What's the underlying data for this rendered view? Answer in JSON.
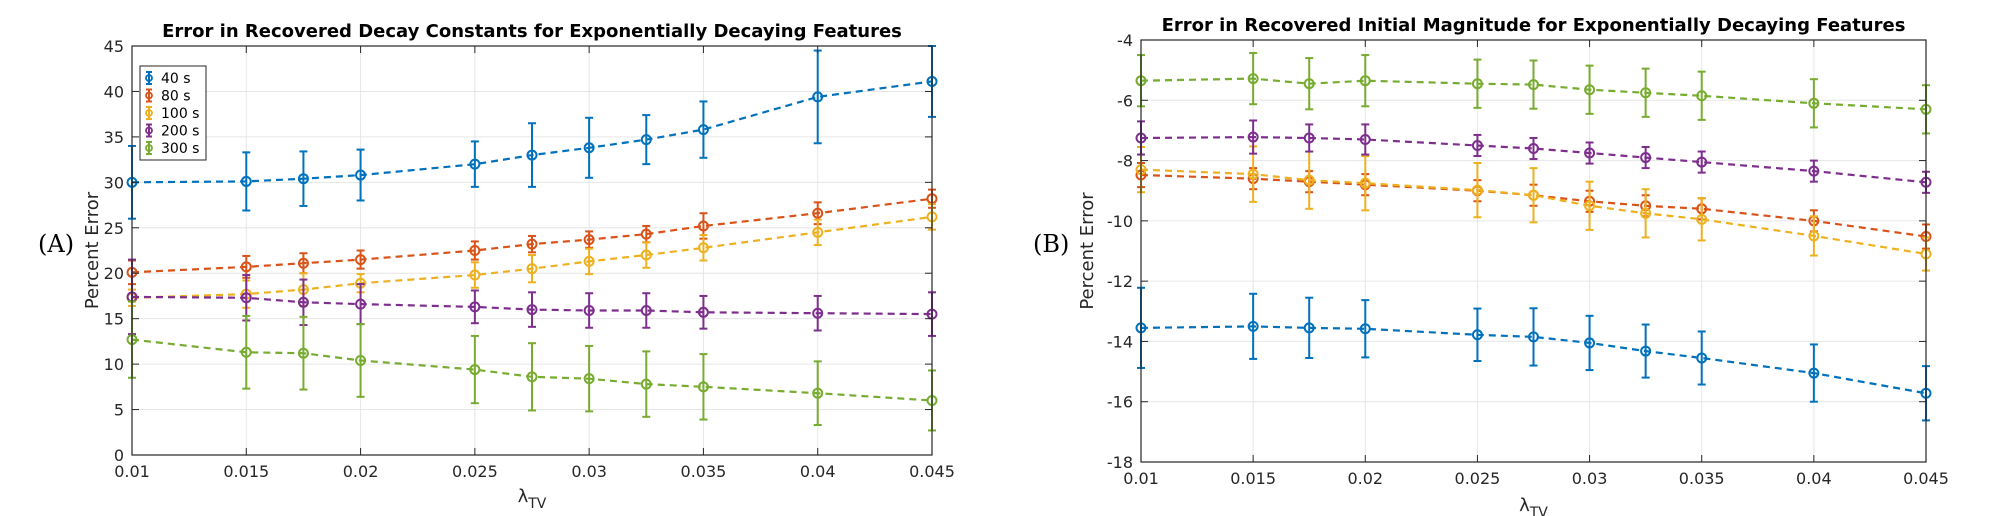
{
  "chart_data": [
    {
      "type": "line",
      "panel_label": "(A)",
      "title": "Error in Recovered Decay Constants for Exponentially Decaying Features",
      "xlabel": "λ",
      "xlabel_sub": "TV",
      "ylabel": "Percent Error",
      "xlim": [
        0.01,
        0.045
      ],
      "ylim": [
        0,
        45
      ],
      "xticks": [
        0.01,
        0.015,
        0.02,
        0.025,
        0.03,
        0.035,
        0.04,
        0.045
      ],
      "xtick_labels": [
        "0.01",
        "0.015",
        "0.02",
        "0.025",
        "0.03",
        "0.035",
        "0.04",
        "0.045"
      ],
      "yticks": [
        0,
        5,
        10,
        15,
        20,
        25,
        30,
        35,
        40,
        45
      ],
      "ytick_labels": [
        "0",
        "5",
        "10",
        "15",
        "20",
        "25",
        "30",
        "35",
        "40",
        "45"
      ],
      "grid": true,
      "legend_position": "top-left",
      "x": [
        0.01,
        0.015,
        0.0175,
        0.02,
        0.025,
        0.0275,
        0.03,
        0.0325,
        0.035,
        0.04,
        0.045
      ],
      "series": [
        {
          "name": "40 s",
          "color": "#0072BD",
          "values": [
            30.0,
            30.1,
            30.4,
            30.8,
            32.0,
            33.0,
            33.8,
            34.7,
            35.8,
            39.4,
            41.1
          ],
          "errors": [
            4.0,
            3.2,
            3.0,
            2.8,
            2.5,
            3.5,
            3.3,
            2.7,
            3.1,
            5.1,
            3.9
          ]
        },
        {
          "name": "80 s",
          "color": "#D95319",
          "values": [
            20.1,
            20.7,
            21.1,
            21.5,
            22.5,
            23.2,
            23.7,
            24.3,
            25.2,
            26.6,
            28.2
          ],
          "errors": [
            1.3,
            1.2,
            1.1,
            1.0,
            1.0,
            0.9,
            0.9,
            0.9,
            1.4,
            1.2,
            1.0
          ]
        },
        {
          "name": "100 s",
          "color": "#EDB120",
          "values": [
            17.3,
            17.7,
            18.2,
            18.9,
            19.8,
            20.5,
            21.3,
            22.0,
            22.8,
            24.5,
            26.2
          ],
          "errors": [
            0.9,
            1.5,
            1.8,
            1.0,
            1.4,
            1.5,
            1.4,
            1.4,
            1.4,
            1.4,
            1.4
          ]
        },
        {
          "name": "200 s",
          "color": "#7E2F8E",
          "values": [
            17.4,
            17.3,
            16.8,
            16.6,
            16.3,
            16.0,
            15.9,
            15.9,
            15.7,
            15.6,
            15.5
          ],
          "errors": [
            4.1,
            2.5,
            2.5,
            2.2,
            1.8,
            1.9,
            1.9,
            1.9,
            1.8,
            1.9,
            2.4
          ]
        },
        {
          "name": "300 s",
          "color": "#77AC30",
          "values": [
            12.7,
            11.3,
            11.2,
            10.4,
            9.4,
            8.6,
            8.4,
            7.8,
            7.5,
            6.8,
            6.0
          ],
          "errors": [
            4.2,
            4.0,
            4.0,
            4.0,
            3.7,
            3.7,
            3.6,
            3.6,
            3.6,
            3.5,
            3.3
          ]
        }
      ]
    },
    {
      "type": "line",
      "panel_label": "(B)",
      "title": "Error in Recovered Initial Magnitude for Exponentially Decaying Features",
      "xlabel": "λ",
      "xlabel_sub": "TV",
      "ylabel": "Percent Error",
      "xlim": [
        0.01,
        0.045
      ],
      "ylim": [
        -18,
        -4
      ],
      "xticks": [
        0.01,
        0.015,
        0.02,
        0.025,
        0.03,
        0.035,
        0.04,
        0.045
      ],
      "xtick_labels": [
        "0.01",
        "0.015",
        "0.02",
        "0.025",
        "0.03",
        "0.035",
        "0.04",
        "0.045"
      ],
      "yticks": [
        -18,
        -16,
        -14,
        -12,
        -10,
        -8,
        -6,
        -4
      ],
      "ytick_labels": [
        "-18",
        "-16",
        "-14",
        "-12",
        "-10",
        "-8",
        "-6",
        "-4"
      ],
      "grid": true,
      "legend_position": "none",
      "x": [
        0.01,
        0.015,
        0.0175,
        0.02,
        0.025,
        0.0275,
        0.03,
        0.0325,
        0.035,
        0.04,
        0.045
      ],
      "series": [
        {
          "name": "40 s",
          "color": "#0072BD",
          "values": [
            -13.55,
            -13.5,
            -13.55,
            -13.58,
            -13.78,
            -13.85,
            -14.05,
            -14.32,
            -14.55,
            -15.05,
            -15.72
          ],
          "errors": [
            1.33,
            1.08,
            1.0,
            0.95,
            0.87,
            0.95,
            0.9,
            0.88,
            0.88,
            0.95,
            0.9
          ]
        },
        {
          "name": "80 s",
          "color": "#D95319",
          "values": [
            -8.48,
            -8.6,
            -8.7,
            -8.8,
            -9.0,
            -9.15,
            -9.35,
            -9.5,
            -9.6,
            -10.0,
            -10.52
          ],
          "errors": [
            0.4,
            0.35,
            0.35,
            0.35,
            0.35,
            0.35,
            0.35,
            0.35,
            0.35,
            0.35,
            0.4
          ]
        },
        {
          "name": "100 s",
          "color": "#EDB120",
          "values": [
            -8.3,
            -8.45,
            -8.65,
            -8.75,
            -8.98,
            -9.15,
            -9.5,
            -9.75,
            -9.95,
            -10.5,
            -11.1
          ],
          "errors": [
            0.75,
            0.92,
            0.95,
            0.9,
            0.9,
            0.9,
            0.8,
            0.8,
            0.7,
            0.65,
            0.55
          ]
        },
        {
          "name": "200 s",
          "color": "#7E2F8E",
          "values": [
            -7.25,
            -7.22,
            -7.25,
            -7.3,
            -7.5,
            -7.6,
            -7.75,
            -7.9,
            -8.05,
            -8.35,
            -8.72
          ],
          "errors": [
            0.55,
            0.55,
            0.45,
            0.5,
            0.35,
            0.35,
            0.35,
            0.35,
            0.35,
            0.35,
            0.35
          ]
        },
        {
          "name": "300 s",
          "color": "#77AC30",
          "values": [
            -5.35,
            -5.28,
            -5.45,
            -5.35,
            -5.45,
            -5.48,
            -5.65,
            -5.75,
            -5.85,
            -6.1,
            -6.3
          ],
          "errors": [
            0.85,
            0.85,
            0.85,
            0.85,
            0.8,
            0.8,
            0.8,
            0.8,
            0.8,
            0.8,
            0.8
          ]
        }
      ]
    }
  ]
}
